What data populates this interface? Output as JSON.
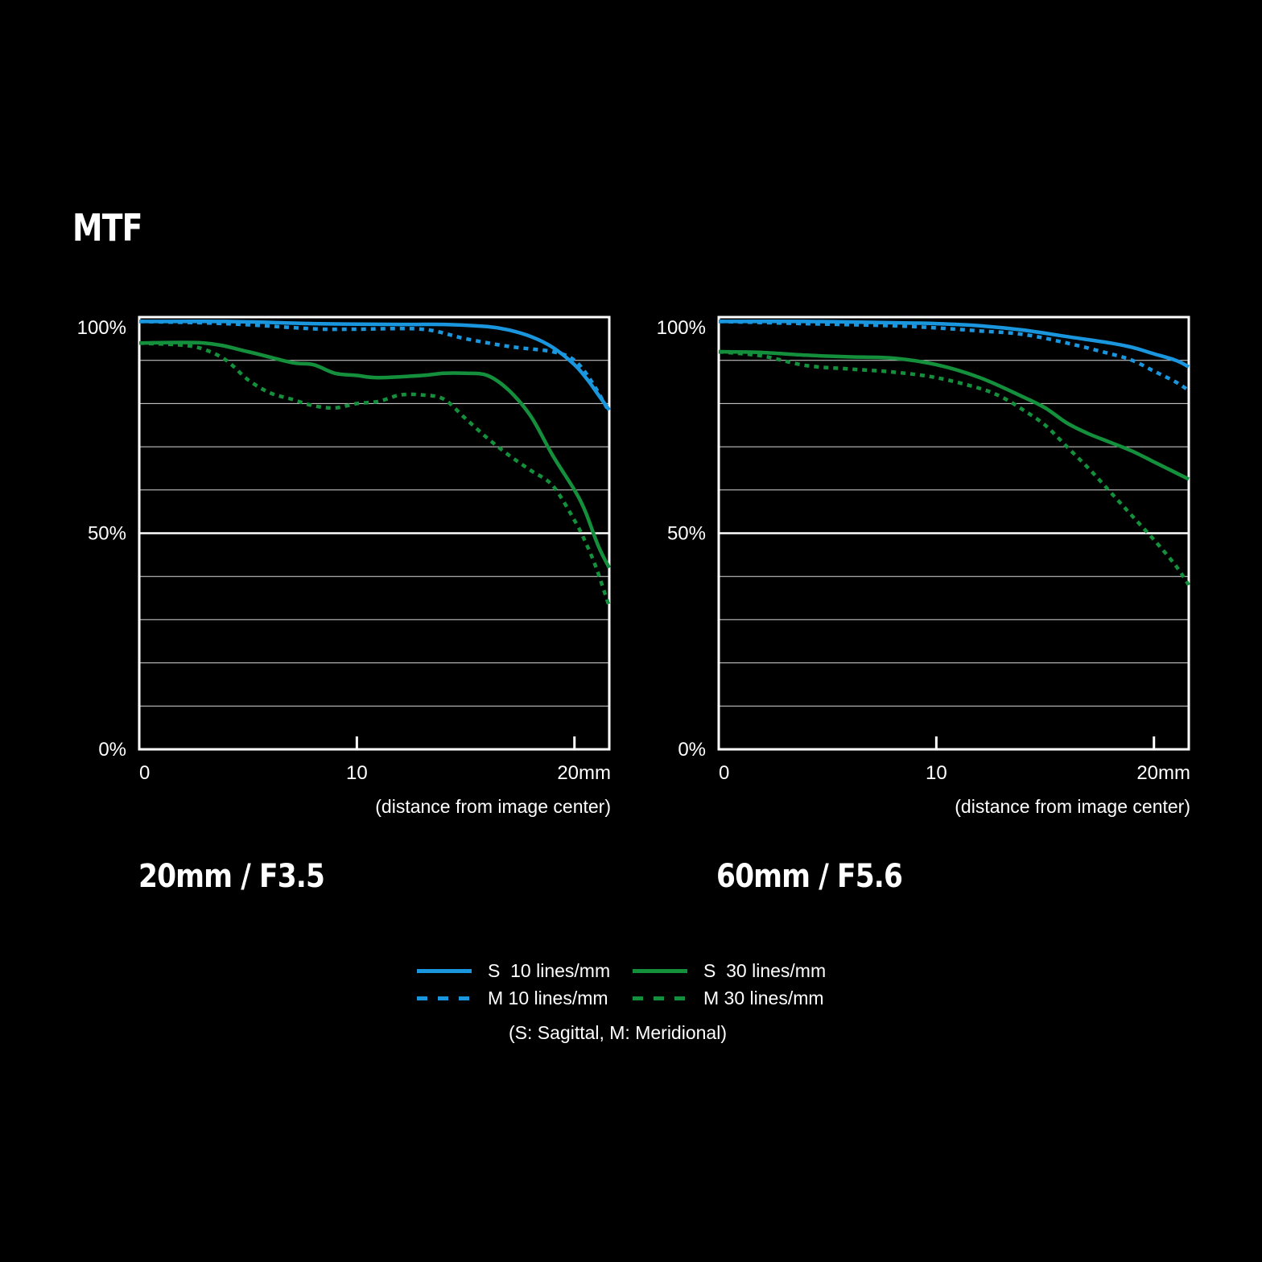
{
  "title": "MTF",
  "colors": {
    "s10": "#1a96de",
    "m10": "#1a96de",
    "s30": "#14903c",
    "m30": "#14903c",
    "background": "#000000",
    "grid": "#ffffff"
  },
  "legend": {
    "items": [
      {
        "key": "s10",
        "label": "S  10 lines/mm",
        "style": "solid"
      },
      {
        "key": "s30",
        "label": "S  30 lines/mm",
        "style": "solid"
      },
      {
        "key": "m10",
        "label": "M 10 lines/mm",
        "style": "dashed"
      },
      {
        "key": "m30",
        "label": "M 30 lines/mm",
        "style": "dashed"
      }
    ],
    "note": "(S: Sagittal, M: Meridional)"
  },
  "chart_data": [
    {
      "type": "line",
      "title": "20mm / F3.5",
      "xlabel": "(distance from image center)",
      "x_ticks": [
        "0",
        "10",
        "20mm"
      ],
      "y_ticks": [
        "0%",
        "50%",
        "100%"
      ],
      "xlim": [
        0,
        21.6
      ],
      "ylim": [
        0,
        100
      ],
      "grid": true,
      "series": [
        {
          "key": "s10",
          "style": "solid",
          "x": [
            0,
            4,
            8,
            12,
            14,
            16,
            17,
            18,
            19,
            20,
            20.6,
            21.1,
            21.6
          ],
          "y": [
            99,
            99,
            98.5,
            98.3,
            98.3,
            97.8,
            97,
            95.5,
            93,
            89,
            85.5,
            82,
            78.5
          ]
        },
        {
          "key": "m10",
          "style": "dashed",
          "x": [
            0,
            4,
            8,
            10,
            13,
            15,
            17,
            19,
            20,
            20.8,
            21.6
          ],
          "y": [
            99,
            98.5,
            97.3,
            97.2,
            97.2,
            95,
            93.2,
            92,
            90,
            85,
            78
          ]
        },
        {
          "key": "s30",
          "style": "solid",
          "x": [
            0,
            3,
            5,
            7,
            8,
            9,
            10,
            11,
            13,
            14,
            15,
            16,
            17,
            18,
            19,
            20,
            20.5,
            21.1,
            21.6
          ],
          "y": [
            94,
            94,
            92,
            89.5,
            89,
            87,
            86.5,
            86,
            86.5,
            87,
            87,
            86.5,
            83,
            77,
            68,
            60,
            55,
            47,
            42
          ]
        },
        {
          "key": "m30",
          "style": "dashed",
          "x": [
            0,
            2,
            3,
            4,
            5,
            6,
            7,
            8,
            9,
            10,
            11,
            12,
            13,
            14,
            15,
            16,
            17,
            18,
            19,
            20,
            20.5,
            21,
            21.6
          ],
          "y": [
            94,
            93.5,
            92.5,
            90,
            85.5,
            82.5,
            81,
            79.5,
            79,
            80,
            80.5,
            82,
            82,
            81,
            76.5,
            72,
            68,
            64.5,
            61,
            53,
            48,
            42,
            33
          ]
        }
      ]
    },
    {
      "type": "line",
      "title": "60mm / F5.6",
      "xlabel": "(distance from image center)",
      "x_ticks": [
        "0",
        "10",
        "20mm"
      ],
      "y_ticks": [
        "0%",
        "50%",
        "100%"
      ],
      "xlim": [
        0,
        21.6
      ],
      "ylim": [
        0,
        100
      ],
      "grid": true,
      "series": [
        {
          "key": "s10",
          "style": "solid",
          "x": [
            0,
            4,
            8,
            10,
            12,
            14,
            16,
            18,
            19,
            20,
            21,
            21.6
          ],
          "y": [
            99,
            99,
            98.7,
            98.5,
            98,
            97,
            95.5,
            94,
            93,
            91.5,
            90,
            88.5
          ]
        },
        {
          "key": "m10",
          "style": "dashed",
          "x": [
            0,
            4,
            8,
            10,
            12,
            14,
            16,
            18,
            19,
            20,
            21,
            21.6
          ],
          "y": [
            99,
            98.5,
            98,
            97.5,
            96.8,
            96,
            94,
            91.5,
            90,
            87.5,
            85,
            83
          ]
        },
        {
          "key": "s30",
          "style": "solid",
          "x": [
            0,
            2,
            4,
            6,
            8,
            10,
            12,
            14,
            15,
            16,
            17,
            18,
            19,
            20,
            21,
            21.6
          ],
          "y": [
            92,
            91.8,
            91.2,
            90.8,
            90.5,
            89,
            86,
            81.5,
            79,
            75.5,
            73,
            71,
            69,
            66.5,
            64,
            62.5
          ]
        },
        {
          "key": "m30",
          "style": "dashed",
          "x": [
            0,
            2,
            4,
            6,
            8,
            10,
            12,
            13,
            14,
            15,
            16,
            17,
            18,
            19,
            20,
            21,
            21.6
          ],
          "y": [
            92,
            91,
            88.8,
            88,
            87.3,
            86,
            83.5,
            81.5,
            78.5,
            75,
            70,
            65,
            59.5,
            54,
            48.5,
            42.5,
            38
          ]
        }
      ]
    }
  ]
}
